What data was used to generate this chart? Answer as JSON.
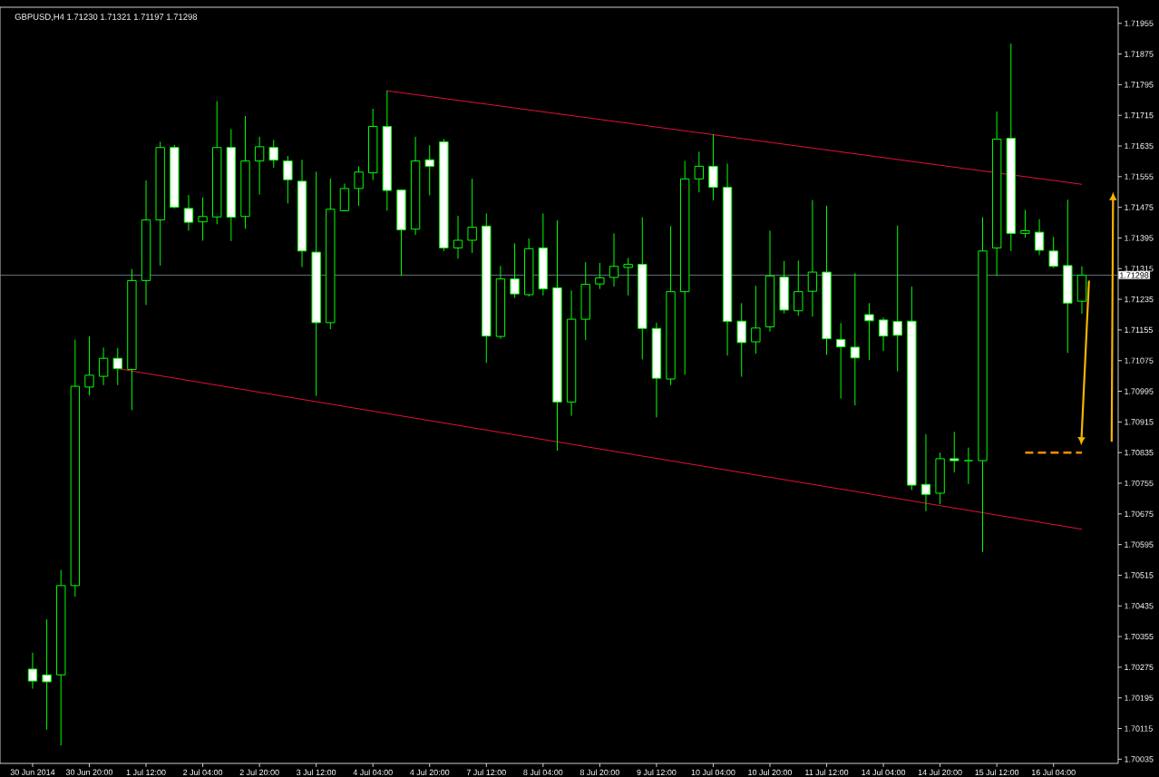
{
  "chart_data": {
    "type": "candlestick",
    "title": "GBPUSD,H4 1.71230 1.71321 1.71197 1.71298",
    "categories": [
      "30 Jun 2014",
      null,
      null,
      null,
      "30 Jun 20:00",
      null,
      null,
      null,
      "1 Jul 12:00",
      null,
      null,
      null,
      "2 Jul 04:00",
      null,
      null,
      null,
      "2 Jul 20:00",
      null,
      null,
      null,
      "3 Jul 12:00",
      null,
      null,
      null,
      "4 Jul 04:00",
      null,
      null,
      null,
      "4 Jul 20:00",
      null,
      null,
      null,
      "7 Jul 12:00",
      null,
      null,
      null,
      "8 Jul 04:00",
      null,
      null,
      null,
      "8 Jul 20:00",
      null,
      null,
      null,
      "9 Jul 12:00",
      null,
      null,
      null,
      "10 Jul 04:00",
      null,
      null,
      null,
      "10 Jul 20:00",
      null,
      null,
      null,
      "11 Jul 12:00",
      null,
      null,
      null,
      "14 Jul 04:00",
      null,
      null,
      null,
      "14 Jul 20:00",
      null,
      null,
      null,
      "15 Jul 12:00",
      null,
      null,
      null,
      "16 Jul 04:00",
      null,
      null
    ],
    "series": [
      {
        "type": "candlestick",
        "color": "#00ff00",
        "ohlc": [
          [
            1.7027,
            1.70313,
            1.70219,
            1.70239
          ],
          [
            1.70255,
            1.704,
            1.70112,
            1.70237
          ],
          [
            1.70255,
            1.70529,
            1.70071,
            1.70488
          ],
          [
            1.70488,
            1.7113,
            1.70459,
            1.71008
          ],
          [
            1.71006,
            1.71138,
            1.70984,
            1.71037
          ],
          [
            1.71034,
            1.71109,
            1.71011,
            1.71081
          ],
          [
            1.71081,
            1.71108,
            1.71011,
            1.71054
          ],
          [
            1.71052,
            1.71314,
            1.70946,
            1.71284
          ],
          [
            1.71284,
            1.71545,
            1.7122,
            1.71442
          ],
          [
            1.71442,
            1.71646,
            1.71323,
            1.71631
          ],
          [
            1.71631,
            1.71638,
            1.71472,
            1.71475
          ],
          [
            1.71472,
            1.71507,
            1.71414,
            1.71436
          ],
          [
            1.71437,
            1.71501,
            1.71388,
            1.71451
          ],
          [
            1.7145,
            1.71752,
            1.71431,
            1.71631
          ],
          [
            1.71631,
            1.71679,
            1.71387,
            1.71449
          ],
          [
            1.71451,
            1.71713,
            1.71419,
            1.71596
          ],
          [
            1.71596,
            1.71659,
            1.71508,
            1.71633
          ],
          [
            1.71631,
            1.71651,
            1.71578,
            1.71598
          ],
          [
            1.71596,
            1.71609,
            1.71485,
            1.71547
          ],
          [
            1.71543,
            1.71599,
            1.71319,
            1.71361
          ],
          [
            1.71358,
            1.71568,
            1.70983,
            1.71174
          ],
          [
            1.71174,
            1.7155,
            1.71157,
            1.7147
          ],
          [
            1.71466,
            1.71537,
            1.71466,
            1.71524
          ],
          [
            1.71524,
            1.71582,
            1.71479,
            1.71567
          ],
          [
            1.71565,
            1.71732,
            1.71546,
            1.71686
          ],
          [
            1.71686,
            1.7178,
            1.71466,
            1.71519
          ],
          [
            1.7152,
            1.7152,
            1.71296,
            1.71416
          ],
          [
            1.71418,
            1.71659,
            1.71403,
            1.71596
          ],
          [
            1.71599,
            1.71637,
            1.71506,
            1.71582
          ],
          [
            1.71646,
            1.71653,
            1.71361,
            1.71369
          ],
          [
            1.71369,
            1.71453,
            1.71341,
            1.71389
          ],
          [
            1.71389,
            1.7155,
            1.71356,
            1.71423
          ],
          [
            1.71426,
            1.71459,
            1.71069,
            1.71139
          ],
          [
            1.71138,
            1.71322,
            1.71132,
            1.71288
          ],
          [
            1.71288,
            1.71381,
            1.71239,
            1.71249
          ],
          [
            1.71247,
            1.71394,
            1.71242,
            1.71367
          ],
          [
            1.71369,
            1.71459,
            1.71245,
            1.71262
          ],
          [
            1.71265,
            1.71441,
            1.7084,
            1.70967
          ],
          [
            1.70967,
            1.71258,
            1.70931,
            1.71183
          ],
          [
            1.71183,
            1.71332,
            1.71129,
            1.71274
          ],
          [
            1.71275,
            1.7133,
            1.71262,
            1.71291
          ],
          [
            1.71292,
            1.71407,
            1.71268,
            1.71321
          ],
          [
            1.71318,
            1.71343,
            1.71245,
            1.71326
          ],
          [
            1.71326,
            1.71449,
            1.71078,
            1.71159
          ],
          [
            1.71159,
            1.71174,
            1.70927,
            1.71029
          ],
          [
            1.71027,
            1.71426,
            1.71011,
            1.71255
          ],
          [
            1.71255,
            1.71596,
            1.71038,
            1.71549
          ],
          [
            1.71549,
            1.7162,
            1.71514,
            1.71582
          ],
          [
            1.71582,
            1.71666,
            1.71493,
            1.71527
          ],
          [
            1.71527,
            1.71589,
            1.71088,
            1.71177
          ],
          [
            1.71178,
            1.71225,
            1.71033,
            1.71122
          ],
          [
            1.71124,
            1.7127,
            1.71093,
            1.7116
          ],
          [
            1.71163,
            1.71414,
            1.71151,
            1.71296
          ],
          [
            1.71293,
            1.71335,
            1.71198,
            1.71207
          ],
          [
            1.71205,
            1.71336,
            1.71192,
            1.71255
          ],
          [
            1.71256,
            1.71494,
            1.7119,
            1.71306
          ],
          [
            1.71306,
            1.71479,
            1.7109,
            1.71132
          ],
          [
            1.7113,
            1.71173,
            1.70976,
            1.71111
          ],
          [
            1.7111,
            1.71303,
            1.70958,
            1.71082
          ],
          [
            1.71195,
            1.71225,
            1.71077,
            1.71179
          ],
          [
            1.71181,
            1.71187,
            1.711,
            1.71139
          ],
          [
            1.71177,
            1.71427,
            1.71047,
            1.71141
          ],
          [
            1.71178,
            1.71268,
            1.70737,
            1.7075
          ],
          [
            1.70752,
            1.70883,
            1.70682,
            1.70726
          ],
          [
            1.70729,
            1.70835,
            1.707,
            1.70819
          ],
          [
            1.70819,
            1.70889,
            1.70783,
            1.70814
          ],
          [
            1.70814,
            1.70848,
            1.70753,
            1.70814
          ],
          [
            1.70814,
            1.71449,
            1.70576,
            1.71361
          ],
          [
            1.71369,
            1.71725,
            1.71296,
            1.71653
          ],
          [
            1.71655,
            1.71902,
            1.71361,
            1.71407
          ],
          [
            1.71407,
            1.71468,
            1.71396,
            1.71414
          ],
          [
            1.7141,
            1.71444,
            1.7135,
            1.71363
          ],
          [
            1.71361,
            1.71398,
            1.71317,
            1.71321
          ],
          [
            1.71323,
            1.71495,
            1.71095,
            1.71225
          ],
          [
            1.7123,
            1.71321,
            1.71197,
            1.71298
          ]
        ]
      },
      {
        "type": "line",
        "color": "#e3103c",
        "values": [
          null,
          null,
          null,
          null,
          null,
          null,
          null,
          null,
          null,
          null,
          null,
          null,
          null,
          null,
          null,
          null,
          null,
          null,
          null,
          null,
          null,
          null,
          null,
          null,
          null,
          1.71779,
          null,
          null,
          null,
          null,
          null,
          null,
          null,
          null,
          null,
          null,
          null,
          null,
          null,
          null,
          null,
          null,
          null,
          null,
          null,
          null,
          null,
          null,
          null,
          null,
          null,
          null,
          null,
          null,
          null,
          null,
          null,
          null,
          null,
          null,
          null,
          null,
          null,
          null,
          null,
          null,
          null,
          null,
          null,
          null,
          null,
          null,
          null,
          null,
          1.71535
        ]
      },
      {
        "type": "line",
        "color": "#e3103c",
        "values": [
          null,
          null,
          null,
          null,
          null,
          null,
          1.71054,
          null,
          null,
          null,
          null,
          null,
          null,
          null,
          null,
          null,
          null,
          null,
          null,
          null,
          null,
          null,
          null,
          null,
          null,
          null,
          null,
          null,
          null,
          null,
          null,
          null,
          null,
          null,
          null,
          null,
          null,
          null,
          null,
          null,
          null,
          null,
          null,
          null,
          null,
          null,
          null,
          null,
          null,
          null,
          null,
          null,
          null,
          null,
          null,
          null,
          null,
          null,
          null,
          null,
          null,
          null,
          null,
          null,
          null,
          null,
          null,
          null,
          null,
          null,
          null,
          null,
          null,
          null,
          1.70635
        ]
      },
      {
        "type": "line",
        "color": "#ff8c00",
        "line_style": "dashed",
        "values": [
          null,
          null,
          null,
          null,
          null,
          null,
          null,
          null,
          null,
          null,
          null,
          null,
          null,
          null,
          null,
          null,
          null,
          null,
          null,
          null,
          null,
          null,
          null,
          null,
          null,
          null,
          null,
          null,
          null,
          null,
          null,
          null,
          null,
          null,
          null,
          null,
          null,
          null,
          null,
          null,
          null,
          null,
          null,
          null,
          null,
          null,
          null,
          null,
          null,
          null,
          null,
          null,
          null,
          null,
          null,
          null,
          null,
          null,
          null,
          null,
          null,
          null,
          null,
          null,
          null,
          null,
          null,
          null,
          null,
          null,
          1.70835,
          null,
          null,
          null,
          1.70835
        ]
      }
    ],
    "ylim": [
      1.70024,
      1.71997
    ],
    "yticks": [
      1.70035,
      1.70115,
      1.70195,
      1.70275,
      1.70355,
      1.70435,
      1.70515,
      1.70595,
      1.70675,
      1.70755,
      1.70835,
      1.70915,
      1.70995,
      1.71075,
      1.71155,
      1.71235,
      1.71315,
      1.71395,
      1.71475,
      1.71555,
      1.71635,
      1.71715,
      1.71795,
      1.71875,
      1.71955
    ],
    "ref_lines": [
      {
        "axis": "y",
        "value": 1.71298,
        "label": "1.71298",
        "color": "#7f8c99"
      }
    ]
  }
}
